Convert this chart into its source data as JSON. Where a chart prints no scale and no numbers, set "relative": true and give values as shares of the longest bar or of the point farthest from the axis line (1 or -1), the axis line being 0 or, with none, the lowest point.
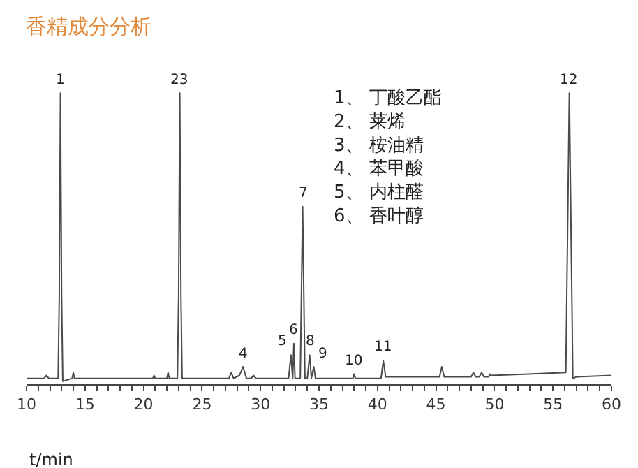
{
  "chart_data": {
    "type": "line",
    "title": "香精成分分析",
    "xlabel": "t/min",
    "relative": true,
    "x": [
      10,
      11.5,
      11.7,
      11.9,
      12.7,
      12.8,
      12.9,
      13.0,
      13.1,
      13.9,
      14.0,
      14.1,
      20.8,
      20.9,
      21.0,
      22.0,
      22.1,
      22.2,
      22.9,
      23.0,
      23.1,
      23.2,
      23.3,
      27.3,
      27.5,
      27.7,
      28.2,
      28.5,
      28.8,
      29.2,
      29.4,
      29.6,
      32.4,
      32.6,
      32.75,
      32.85,
      32.95,
      33.1,
      33.4,
      33.6,
      33.8,
      34.0,
      34.2,
      34.35,
      34.55,
      34.7,
      34.9,
      37.9,
      38.0,
      38.1,
      40.3,
      40.5,
      40.7,
      45.3,
      45.5,
      45.7,
      48,
      48.2,
      48.4,
      48.7,
      48.9,
      49.1,
      49.5,
      49.6,
      49.7,
      56.1,
      56.4,
      56.7,
      57.0,
      60
    ],
    "series": [
      {
        "color": "#4a4a4a",
        "values": [
          0.02,
          0.02,
          0.03,
          0.02,
          0.02,
          0.3,
          1.0,
          0.3,
          0.01,
          0.02,
          0.04,
          0.02,
          0.02,
          0.03,
          0.02,
          0.02,
          0.04,
          0.02,
          0.02,
          0.3,
          1.0,
          0.3,
          0.02,
          0.02,
          0.04,
          0.02,
          0.03,
          0.06,
          0.02,
          0.02,
          0.03,
          0.02,
          0.02,
          0.1,
          0.02,
          0.14,
          0.02,
          0.02,
          0.02,
          0.61,
          0.02,
          0.02,
          0.1,
          0.02,
          0.06,
          0.02,
          0.02,
          0.02,
          0.035,
          0.02,
          0.02,
          0.08,
          0.025,
          0.025,
          0.06,
          0.025,
          0.025,
          0.04,
          0.025,
          0.025,
          0.04,
          0.025,
          0.025,
          0.035,
          0.03,
          0.04,
          1.0,
          0.02,
          0.025,
          0.03
        ]
      }
    ],
    "xlim": [
      10,
      60
    ],
    "xticks": [
      10,
      {
        "value": 11,
        "label": null
      },
      {
        "value": 12,
        "label": null
      },
      {
        "value": 13,
        "label": null
      },
      {
        "value": 14,
        "label": null
      },
      15,
      {
        "value": 16,
        "label": null
      },
      {
        "value": 17,
        "label": null
      },
      {
        "value": 18,
        "label": null
      },
      {
        "value": 19,
        "label": null
      },
      20,
      {
        "value": 21,
        "label": null
      },
      {
        "value": 22,
        "label": null
      },
      {
        "value": 23,
        "label": null
      },
      {
        "value": 24,
        "label": null
      },
      25,
      {
        "value": 26,
        "label": null
      },
      {
        "value": 27,
        "label": null
      },
      {
        "value": 28,
        "label": null
      },
      {
        "value": 29,
        "label": null
      },
      30,
      {
        "value": 31,
        "label": null
      },
      {
        "value": 32,
        "label": null
      },
      {
        "value": 33,
        "label": null
      },
      {
        "value": 34,
        "label": null
      },
      35,
      {
        "value": 36,
        "label": null
      },
      {
        "value": 37,
        "label": null
      },
      {
        "value": 38,
        "label": null
      },
      {
        "value": 39,
        "label": null
      },
      40,
      {
        "value": 41,
        "label": null
      },
      {
        "value": 42,
        "label": null
      },
      {
        "value": 43,
        "label": null
      },
      {
        "value": 44,
        "label": null
      },
      45,
      {
        "value": 46,
        "label": null
      },
      {
        "value": 47,
        "label": null
      },
      {
        "value": 48,
        "label": null
      },
      {
        "value": 49,
        "label": null
      },
      50,
      {
        "value": 51,
        "label": null
      },
      {
        "value": 52,
        "label": null
      },
      {
        "value": 53,
        "label": null
      },
      {
        "value": 54,
        "label": null
      },
      55,
      {
        "value": 56,
        "label": null
      },
      {
        "value": 57,
        "label": null
      },
      {
        "value": 58,
        "label": null
      },
      {
        "value": 59,
        "label": null
      },
      60
    ],
    "annotations": [
      {
        "text": "1",
        "x": 12.9,
        "y": 1.0
      },
      {
        "text": "23",
        "x": 23.1,
        "y": 1.0
      },
      {
        "text": "4",
        "x": 28.5,
        "y": 0.06
      },
      {
        "text": "5",
        "x": 32.6,
        "y": 0.1
      },
      {
        "text": "6",
        "x": 32.85,
        "y": 0.14
      },
      {
        "text": "7",
        "x": 33.6,
        "y": 0.61
      },
      {
        "text": "8",
        "x": 34.2,
        "y": 0.1
      },
      {
        "text": "9",
        "x": 34.55,
        "y": 0.06
      },
      {
        "text": "10",
        "x": 38.0,
        "y": 0.035
      },
      {
        "text": "11",
        "x": 40.5,
        "y": 0.08
      },
      {
        "text": "12",
        "x": 56.4,
        "y": 1.0
      },
      "1、 丁酸乙酯\n2、 莱烯\n3、 桉油精\n4、 苯甲酸\n5、 内柱醛\n6、 香叶醇"
    ],
    "marker": "none",
    "line_style": "solid"
  }
}
